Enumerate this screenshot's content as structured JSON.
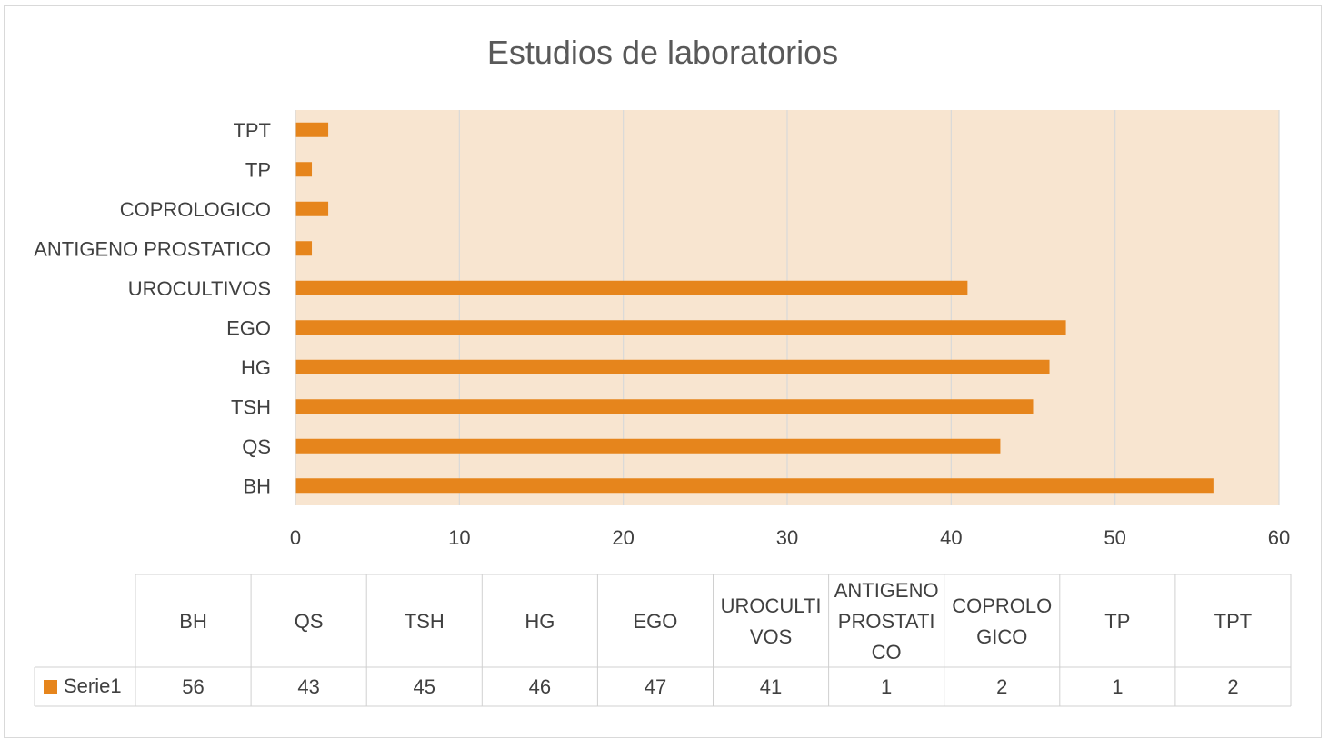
{
  "chart_data": {
    "type": "bar",
    "orientation": "horizontal",
    "title": "Estudios de laboratorios",
    "categories": [
      "BH",
      "QS",
      "TSH",
      "HG",
      "EGO",
      "UROCULTIVOS",
      "ANTIGENO PROSTATICO",
      "COPROLOGICO",
      "TP",
      "TPT"
    ],
    "series": [
      {
        "name": "Serie1",
        "values": [
          56,
          43,
          45,
          46,
          47,
          41,
          1,
          2,
          1,
          2
        ]
      }
    ],
    "xlim": [
      0,
      60
    ],
    "x_ticks": [
      "0",
      "10",
      "20",
      "30",
      "40",
      "50",
      "60"
    ],
    "grid": true,
    "data_table": {
      "header_lines": [
        [
          "BH"
        ],
        [
          "QS"
        ],
        [
          "TSH"
        ],
        [
          "HG"
        ],
        [
          "EGO"
        ],
        [
          "UROCULTI",
          "VOS"
        ],
        [
          "ANTIGENO",
          "PROSTATI",
          "CO"
        ],
        [
          "COPROLO",
          "GICO"
        ],
        [
          "TP"
        ],
        [
          "TPT"
        ]
      ]
    },
    "colors": {
      "bar": "#E6851C",
      "plot_bg": "#F8E5D0",
      "grid": "#D9D9D9"
    }
  }
}
